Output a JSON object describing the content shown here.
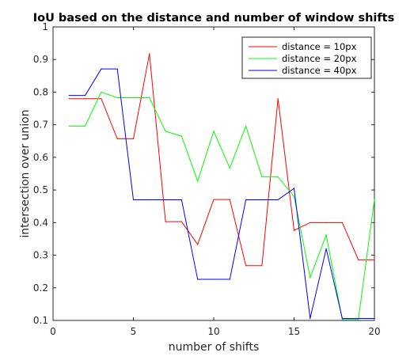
{
  "chart_data": {
    "type": "line",
    "title": "IoU based on the distance and number of window shifts",
    "xlabel": "number of shifts",
    "ylabel": "intersection over union",
    "xlim": [
      0,
      20
    ],
    "ylim": [
      0.1,
      1
    ],
    "xticks": [
      0,
      5,
      10,
      15,
      20
    ],
    "yticks": [
      0.1,
      0.2,
      0.3,
      0.4,
      0.5,
      0.6,
      0.7,
      0.8,
      0.9,
      1
    ],
    "grid": false,
    "legend_position": "top-right",
    "x": [
      1,
      2,
      3,
      4,
      5,
      6,
      7,
      8,
      9,
      10,
      11,
      12,
      13,
      14,
      15,
      16,
      17,
      18,
      19,
      20
    ],
    "series": [
      {
        "name": "distance = 10px",
        "color": "#ff0000",
        "values": [
          0.78,
          0.78,
          0.78,
          0.657,
          0.657,
          0.918,
          0.403,
          0.403,
          0.333,
          0.471,
          0.471,
          0.268,
          0.268,
          0.78,
          0.376,
          0.4,
          0.4,
          0.4,
          0.286,
          0.286
        ]
      },
      {
        "name": "distance = 20px",
        "color": "#00ff00",
        "values": [
          0.696,
          0.696,
          0.8,
          0.783,
          0.783,
          0.783,
          0.68,
          0.665,
          0.527,
          0.68,
          0.567,
          0.696,
          0.54,
          0.54,
          0.48,
          0.232,
          0.362,
          0.103,
          0.103,
          0.471
        ]
      },
      {
        "name": "distance = 40px",
        "color": "#0000ff",
        "values": [
          0.79,
          0.79,
          0.871,
          0.871,
          0.47,
          0.47,
          0.47,
          0.47,
          0.226,
          0.226,
          0.226,
          0.47,
          0.47,
          0.47,
          0.505,
          0.106,
          0.32,
          0.106,
          0.106,
          0.106
        ]
      }
    ]
  }
}
